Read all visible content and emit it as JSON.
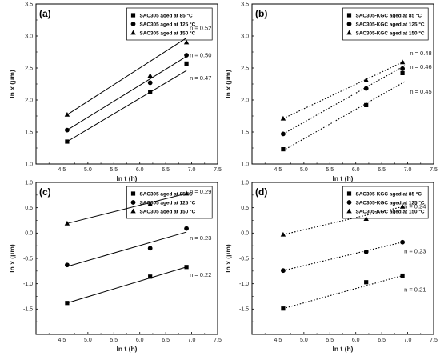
{
  "chart_data": [
    {
      "panel": "(a)",
      "type": "scatter",
      "line_style": "solid",
      "xlabel": "ln t (h)",
      "ylabel": "ln x (μm)",
      "xlim": [
        4.0,
        7.5
      ],
      "ylim": [
        1.0,
        3.5
      ],
      "xticks": [
        "4.5",
        "5.0",
        "5.5",
        "6.0",
        "6.5",
        "7.0",
        "7.5"
      ],
      "yticks": [
        "1.0",
        "1.5",
        "2.0",
        "2.5",
        "3.0",
        "3.5"
      ],
      "legend_position": "top-right",
      "series": [
        {
          "name": "SAC305 aged at 85 °C",
          "marker": "square",
          "x": [
            4.6,
            6.2,
            6.9
          ],
          "y": [
            1.35,
            2.12,
            2.57
          ],
          "fit": [
            [
              4.6,
              1.35
            ],
            [
              6.9,
              2.46
            ]
          ],
          "n_label": "n = 0.47"
        },
        {
          "name": "SAC305 aged at 125 °C",
          "marker": "circle",
          "x": [
            4.6,
            6.2,
            6.9
          ],
          "y": [
            1.53,
            2.27,
            2.7
          ],
          "fit": [
            [
              4.6,
              1.53
            ],
            [
              6.9,
              2.68
            ]
          ],
          "n_label": "n = 0.50"
        },
        {
          "name": "SAC305 aged at 150 °C",
          "marker": "triangle",
          "x": [
            4.6,
            6.2,
            6.9
          ],
          "y": [
            1.77,
            2.38,
            2.9
          ],
          "fit": [
            [
              4.6,
              1.77
            ],
            [
              6.9,
              2.97
            ]
          ],
          "n_label": "n = 0.52"
        }
      ]
    },
    {
      "panel": "(b)",
      "type": "scatter",
      "line_style": "dotted",
      "xlabel": "ln t (h)",
      "ylabel": "ln x (μm)",
      "xlim": [
        4.0,
        7.5
      ],
      "ylim": [
        1.0,
        3.5
      ],
      "xticks": [
        "4.5",
        "5.0",
        "5.5",
        "6.0",
        "6.5",
        "7.0",
        "7.5"
      ],
      "yticks": [
        "1.0",
        "1.5",
        "2.0",
        "2.5",
        "3.0",
        "3.5"
      ],
      "legend_position": "top-right",
      "series": [
        {
          "name": "SAC305-KGC aged at 85 °C",
          "marker": "square",
          "x": [
            4.6,
            6.2,
            6.9
          ],
          "y": [
            1.23,
            1.92,
            2.42
          ],
          "fit": [
            [
              4.6,
              1.21
            ],
            [
              6.95,
              2.29
            ]
          ],
          "n_label": "n = 0.45"
        },
        {
          "name": "SAC305-KGC aged at 125 °C",
          "marker": "circle",
          "x": [
            4.6,
            6.2,
            6.9
          ],
          "y": [
            1.47,
            2.18,
            2.49
          ],
          "fit": [
            [
              4.6,
              1.47
            ],
            [
              6.95,
              2.54
            ]
          ],
          "n_label": "n = 0.46"
        },
        {
          "name": "SAC305-KGC aged at 150 °C",
          "marker": "triangle",
          "x": [
            4.6,
            6.2,
            6.9
          ],
          "y": [
            1.71,
            2.31,
            2.59
          ],
          "fit": [
            [
              4.6,
              1.71
            ],
            [
              6.95,
              2.61
            ]
          ],
          "n_label": "n = 0.48"
        }
      ]
    },
    {
      "panel": "(c)",
      "type": "scatter",
      "line_style": "solid",
      "xlabel": "ln t (h)",
      "ylabel": "ln x (μm)",
      "xlim": [
        4.0,
        7.5
      ],
      "ylim": [
        -2.0,
        1.0
      ],
      "xticks": [
        "4.5",
        "5.0",
        "5.5",
        "6.0",
        "6.5",
        "7.0",
        "7.5"
      ],
      "yticks": [
        "-1.5",
        "-1.0",
        "-0.5",
        "0.0",
        "0.5",
        "1.0"
      ],
      "legend_position": "top-right",
      "series": [
        {
          "name": "SAC305 aged at 85 °C",
          "marker": "square",
          "x": [
            4.6,
            6.2,
            6.9
          ],
          "y": [
            -1.38,
            -0.86,
            -0.67
          ],
          "fit": [
            [
              4.6,
              -1.38
            ],
            [
              6.9,
              -0.67
            ]
          ],
          "n_label": "n = 0.22"
        },
        {
          "name": "SAC305 aged at 125 °C",
          "marker": "circle",
          "x": [
            4.6,
            6.2,
            6.9
          ],
          "y": [
            -0.63,
            -0.3,
            0.09
          ],
          "fit": [
            [
              4.6,
              -0.66
            ],
            [
              6.9,
              0.02
            ]
          ],
          "n_label": "n = 0.23"
        },
        {
          "name": "SAC305 aged at 150 °C",
          "marker": "triangle",
          "x": [
            4.6,
            6.2,
            6.9
          ],
          "y": [
            0.19,
            0.57,
            0.78
          ],
          "fit": [
            [
              4.6,
              0.19
            ],
            [
              6.9,
              0.78
            ]
          ],
          "n_label": "n = 0.29"
        }
      ]
    },
    {
      "panel": "(d)",
      "type": "scatter",
      "line_style": "dotted",
      "xlabel": "ln t (h)",
      "ylabel": "ln x (μm)",
      "xlim": [
        4.0,
        7.5
      ],
      "ylim": [
        -2.0,
        1.0
      ],
      "xticks": [
        "4.5",
        "5.0",
        "5.5",
        "6.0",
        "6.5",
        "7.0",
        "7.5"
      ],
      "yticks": [
        "-1.5",
        "-1.0",
        "-0.5",
        "0.0",
        "0.5",
        "1.0"
      ],
      "legend_position": "top-right",
      "series": [
        {
          "name": "SAC305-KGC aged at 85 °C",
          "marker": "square",
          "x": [
            4.6,
            6.2,
            6.9
          ],
          "y": [
            -1.49,
            -0.97,
            -0.84
          ],
          "fit": [
            [
              4.6,
              -1.49
            ],
            [
              6.9,
              -0.84
            ]
          ],
          "n_label": "n = 0.21"
        },
        {
          "name": "SAC305-KGC aged at 125 °C",
          "marker": "circle",
          "x": [
            4.6,
            6.2,
            6.9
          ],
          "y": [
            -0.74,
            -0.37,
            -0.18
          ],
          "fit": [
            [
              4.6,
              -0.74
            ],
            [
              6.9,
              -0.18
            ]
          ],
          "n_label": "n = 0.23"
        },
        {
          "name": "SAC305-KGC aged at 150 °C",
          "marker": "triangle",
          "x": [
            4.6,
            6.2,
            6.9
          ],
          "y": [
            -0.03,
            0.28,
            0.52
          ],
          "fit": [
            [
              4.6,
              -0.03
            ],
            [
              6.9,
              0.52
            ]
          ],
          "n_label": "n = 0.24"
        }
      ]
    }
  ]
}
